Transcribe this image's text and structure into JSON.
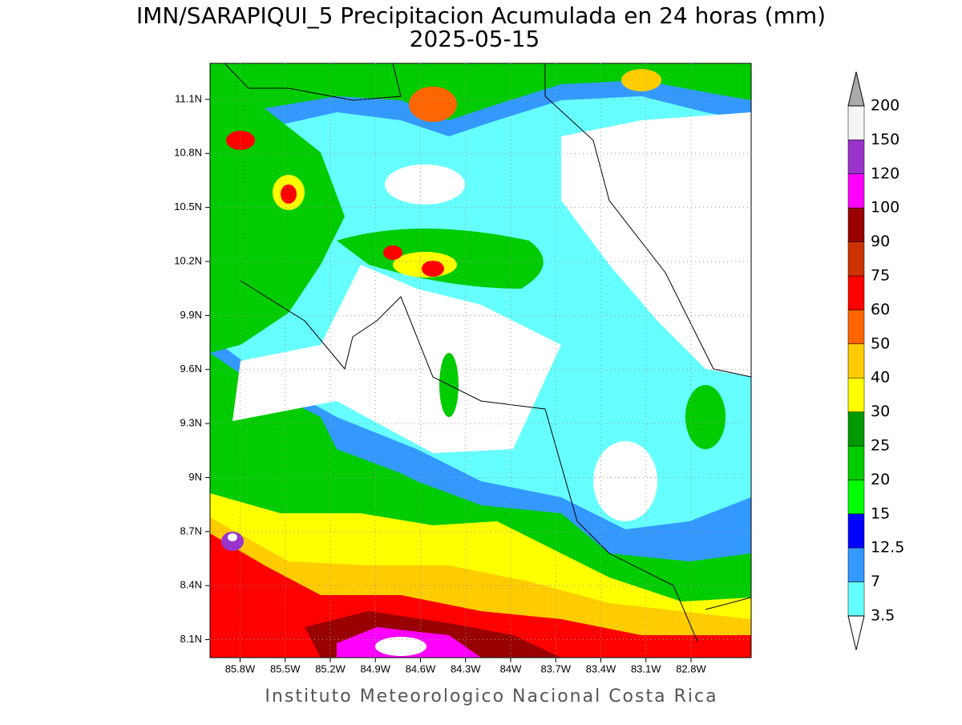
{
  "title": "IMN/SARAPIQUI_5 Precipitacion Acumulada en 24 horas (mm)",
  "subtitle": "2025-05-15",
  "footer": "Instituto Meteorologico Nacional Costa Rica",
  "map": {
    "lonlim": [
      -86.0,
      -82.4
    ],
    "latlim": [
      8.0,
      11.3
    ],
    "grid": true,
    "xticks": [
      {
        "value": -85.8,
        "label": "85.8W"
      },
      {
        "value": -85.5,
        "label": "85.5W"
      },
      {
        "value": -85.2,
        "label": "85.2W"
      },
      {
        "value": -84.9,
        "label": "84.9W"
      },
      {
        "value": -84.6,
        "label": "84.6W"
      },
      {
        "value": -84.3,
        "label": "84.3W"
      },
      {
        "value": -84,
        "label": "84W"
      },
      {
        "value": -83.7,
        "label": "83.7W"
      },
      {
        "value": -83.4,
        "label": "83.4W"
      },
      {
        "value": -83.1,
        "label": "83.1W"
      },
      {
        "value": -82.8,
        "label": "82.8W"
      }
    ],
    "yticks": [
      {
        "value": 8.1,
        "label": "8.1N"
      },
      {
        "value": 8.4,
        "label": "8.4N"
      },
      {
        "value": 8.7,
        "label": "8.7N"
      },
      {
        "value": 9,
        "label": "9N"
      },
      {
        "value": 9.3,
        "label": "9.3N"
      },
      {
        "value": 9.6,
        "label": "9.6N"
      },
      {
        "value": 9.9,
        "label": "9.9N"
      },
      {
        "value": 10.2,
        "label": "10.2N"
      },
      {
        "value": 10.5,
        "label": "10.5N"
      },
      {
        "value": 10.8,
        "label": "10.8N"
      },
      {
        "value": 11.1,
        "label": "11.1N"
      }
    ]
  },
  "colorbar": {
    "levels": [
      3.5,
      7,
      12.5,
      15,
      20,
      25,
      30,
      40,
      50,
      60,
      75,
      90,
      100,
      120,
      150,
      200
    ],
    "colors": [
      "#66ffff",
      "#3399ff",
      "#0000ff",
      "#00ff00",
      "#00cc00",
      "#009900",
      "#ffff00",
      "#ffcc00",
      "#ff6600",
      "#ff0000",
      "#cc3300",
      "#990000",
      "#ff00ff",
      "#9933cc",
      "#f5f5f5"
    ],
    "under_color": "#ffffff",
    "over_color": "#aaaaaa"
  }
}
